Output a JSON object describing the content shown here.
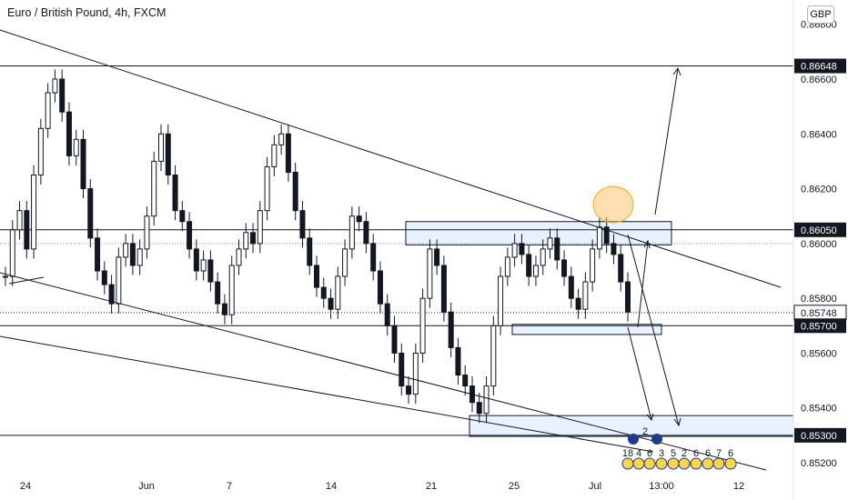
{
  "header": {
    "title": "Euro / British Pound, 4h, FXCM",
    "currency": "GBP"
  },
  "chart_data": {
    "type": "candlestick",
    "symbol": "Euro / British Pound",
    "interval": "4h",
    "source": "FXCM",
    "y_ticks": [
      0.852,
      0.854,
      0.856,
      0.858,
      0.86,
      0.862,
      0.864,
      0.866,
      0.868
    ],
    "y_tick_labels": [
      "0.85200",
      "0.85400",
      "0.85600",
      "0.85800",
      "0.86000",
      "0.86200",
      "0.86400",
      "0.86600",
      "0.86800"
    ],
    "x_tick_labels": [
      "24",
      "Jun",
      "7",
      "14",
      "21",
      "25",
      "Jul",
      "13:00",
      "12"
    ],
    "horizontal_levels": [
      {
        "label": "0.86648",
        "value": 0.86648,
        "style": "black-tag"
      },
      {
        "label": "0.86050",
        "value": 0.8605,
        "style": "black-tag"
      },
      {
        "label": "0.85748",
        "value": 0.85748,
        "style": "white-tag"
      },
      {
        "label": "0.85700",
        "value": 0.857,
        "style": "black-tag"
      },
      {
        "label": "0.85300",
        "value": 0.853,
        "style": "black-tag"
      }
    ],
    "current_price": 0.85748,
    "zones": [
      {
        "name": "resistance-zone",
        "top": 0.8608,
        "bottom": 0.85995
      },
      {
        "name": "support-zone-mid",
        "top": 0.85705,
        "bottom": 0.85668
      },
      {
        "name": "support-zone-low",
        "top": 0.85372,
        "bottom": 0.85296
      }
    ],
    "events": {
      "counts": [
        "18",
        "4",
        "6",
        "3",
        "5",
        "2",
        "6",
        "6",
        "7",
        "6"
      ],
      "marker": "2"
    },
    "candles_approx": [
      0.8588,
      0.8605,
      0.8612,
      0.8598,
      0.8625,
      0.8642,
      0.8655,
      0.866,
      0.8648,
      0.8632,
      0.8638,
      0.862,
      0.8602,
      0.859,
      0.8585,
      0.8578,
      0.8595,
      0.86,
      0.8592,
      0.8598,
      0.861,
      0.863,
      0.864,
      0.8625,
      0.8612,
      0.8608,
      0.8598,
      0.859,
      0.8594,
      0.8586,
      0.8578,
      0.8574,
      0.8592,
      0.8598,
      0.8604,
      0.86,
      0.8612,
      0.8628,
      0.8636,
      0.864,
      0.8626,
      0.8612,
      0.8602,
      0.8592,
      0.8584,
      0.858,
      0.8576,
      0.8588,
      0.8598,
      0.861,
      0.8608,
      0.86,
      0.859,
      0.8578,
      0.857,
      0.856,
      0.8548,
      0.8545,
      0.856,
      0.858,
      0.8598,
      0.8592,
      0.8575,
      0.8562,
      0.8552,
      0.8548,
      0.8542,
      0.8538,
      0.8548,
      0.857,
      0.8588,
      0.8595,
      0.86,
      0.8596,
      0.8588,
      0.8592,
      0.8598,
      0.8602,
      0.8594,
      0.8588,
      0.858,
      0.8576,
      0.8586,
      0.8598,
      0.8606,
      0.86,
      0.8596,
      0.8586,
      0.8575
    ]
  }
}
